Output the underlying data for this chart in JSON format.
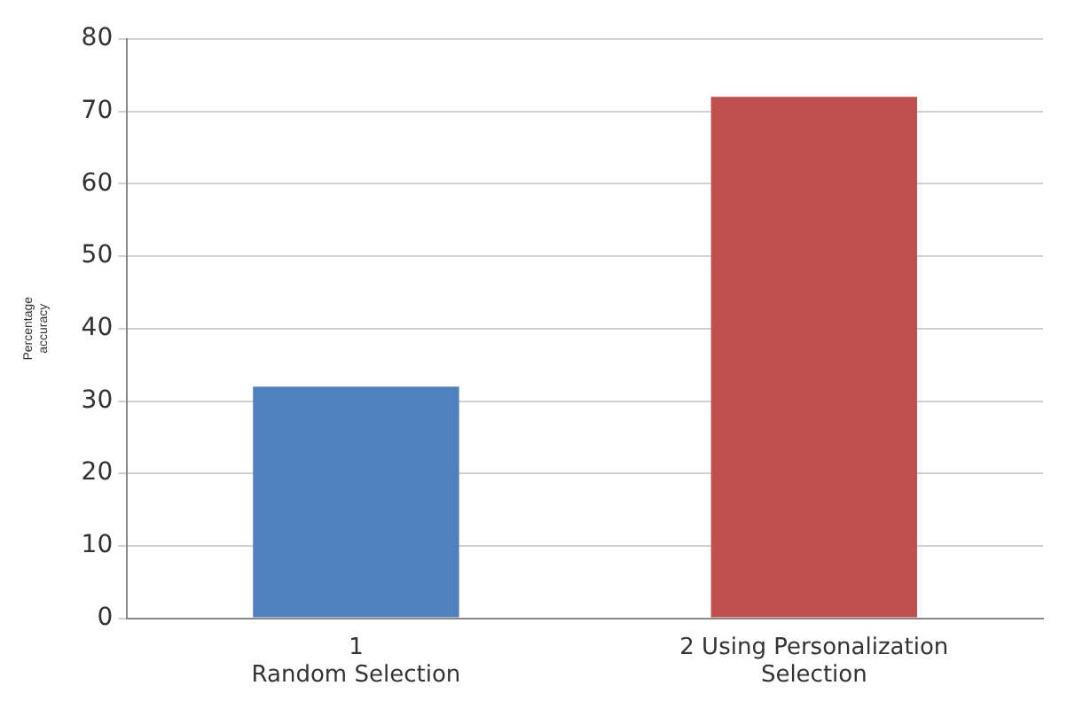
{
  "chart_data": {
    "type": "bar",
    "ylabel": "Percentage accuracy",
    "categories": [
      "1\nRandom Selection",
      "2 Using Personalization\nSelection"
    ],
    "values": [
      32,
      72
    ],
    "colors": [
      "#4f81bd",
      "#c0504d"
    ],
    "ylim": [
      0,
      80
    ],
    "yticks": [
      0,
      10,
      20,
      30,
      40,
      50,
      60,
      70,
      80
    ],
    "grid": "y",
    "legend": false
  }
}
